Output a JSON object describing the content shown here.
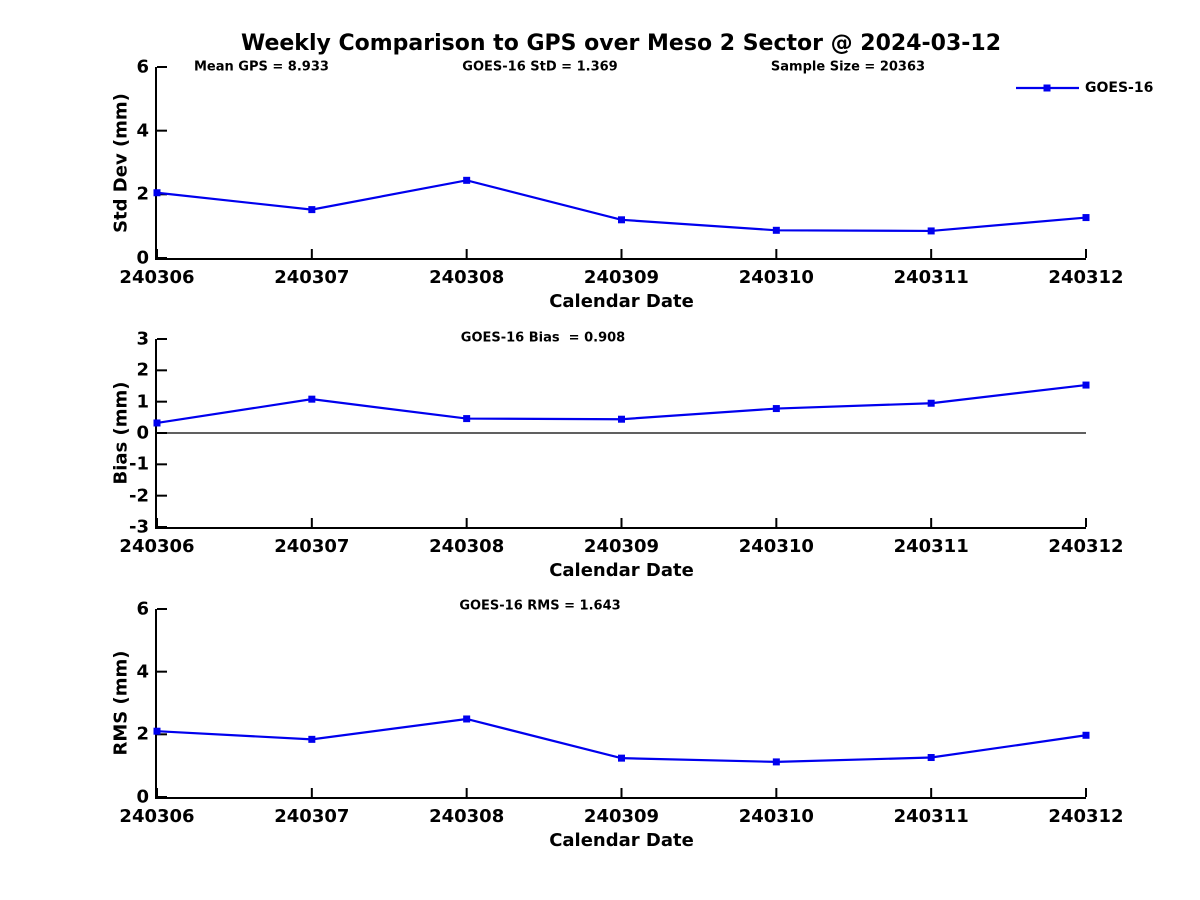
{
  "title": "Weekly Comparison to GPS over Meso 2 Sector @ 2024-03-12",
  "annotations": {
    "mean_gps": "Mean GPS = 8.933",
    "std": "GOES-16 StD = 1.369",
    "sample_size": "Sample Size = 20363",
    "bias": "GOES-16 Bias  = 0.908",
    "rms": "GOES-16 RMS = 1.643"
  },
  "legend": {
    "label": "GOES-16",
    "line_color": "#0000EE",
    "marker": "filled-square"
  },
  "x_axis_label": "Calendar Date",
  "chart_data": [
    {
      "type": "line",
      "name": "stddev",
      "categories": [
        "240306",
        "240307",
        "240308",
        "240309",
        "240310",
        "240311",
        "240312"
      ],
      "series": [
        {
          "name": "GOES-16",
          "values": [
            2.05,
            1.52,
            2.44,
            1.2,
            0.87,
            0.85,
            1.27
          ]
        }
      ],
      "xlabel": "Calendar Date",
      "ylabel": "Std Dev (mm)",
      "ylim": [
        0,
        6
      ],
      "yticks": [
        0,
        2,
        4,
        6
      ],
      "grid": false,
      "zero_line": false,
      "annotations": [
        "Mean GPS = 8.933",
        "GOES-16 StD = 1.369",
        "Sample Size = 20363"
      ],
      "legend_position": "northeast-outside"
    },
    {
      "type": "line",
      "name": "bias",
      "categories": [
        "240306",
        "240307",
        "240308",
        "240309",
        "240310",
        "240311",
        "240312"
      ],
      "series": [
        {
          "name": "GOES-16",
          "values": [
            0.32,
            1.08,
            0.46,
            0.44,
            0.78,
            0.95,
            1.53
          ]
        }
      ],
      "xlabel": "Calendar Date",
      "ylabel": "Bias (mm)",
      "ylim": [
        -3,
        3
      ],
      "yticks": [
        -3,
        -2,
        -1,
        0,
        1,
        2,
        3
      ],
      "grid": false,
      "zero_line": true,
      "annotations": [
        "GOES-16 Bias  = 0.908"
      ]
    },
    {
      "type": "line",
      "name": "rms",
      "categories": [
        "240306",
        "240307",
        "240308",
        "240309",
        "240310",
        "240311",
        "240312"
      ],
      "series": [
        {
          "name": "GOES-16",
          "values": [
            2.1,
            1.84,
            2.49,
            1.24,
            1.12,
            1.26,
            1.97
          ]
        }
      ],
      "xlabel": "Calendar Date",
      "ylabel": "RMS (mm)",
      "ylim": [
        0,
        6
      ],
      "yticks": [
        0,
        2,
        4,
        6
      ],
      "grid": false,
      "zero_line": false,
      "annotations": [
        "GOES-16 RMS = 1.643"
      ]
    }
  ]
}
